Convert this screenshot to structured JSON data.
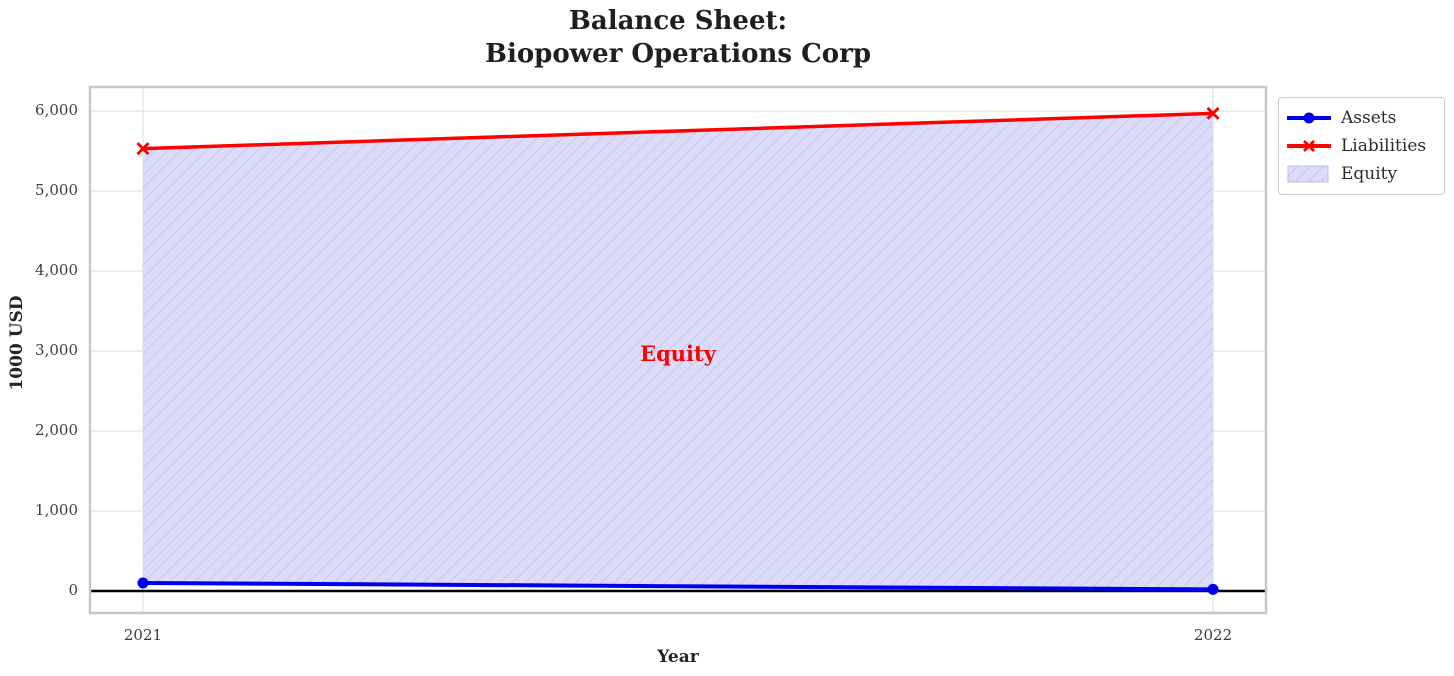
{
  "title": "Balance Sheet:\nBiopower Operations Corp",
  "chart_data": {
    "type": "area",
    "title": "Balance Sheet: Biopower Operations Corp",
    "xlabel": "Year",
    "ylabel": "1000 USD",
    "x": [
      2021,
      2022
    ],
    "xticks": [
      "2021",
      "2022"
    ],
    "yticks": [
      0,
      1000,
      2000,
      3000,
      4000,
      5000,
      6000
    ],
    "ytick_labels": [
      "0",
      "1,000",
      "2,000",
      "3,000",
      "4,000",
      "5,000",
      "6,000"
    ],
    "xlim": [
      2020.9505,
      2022.0495
    ],
    "ylim": [
      -275,
      6300
    ],
    "grid": true,
    "zero_line": true,
    "series": [
      {
        "name": "Assets",
        "values": [
          100,
          20
        ],
        "color": "#0000ee",
        "marker": "circle",
        "line_width": 4
      },
      {
        "name": "Liabilities",
        "values": [
          5530,
          5970
        ],
        "color": "#ff0000",
        "marker": "x",
        "line_width": 3.5
      }
    ],
    "fill_between": {
      "label": "Equity",
      "between": [
        "Assets",
        "Liabilities"
      ],
      "fill_color": "#dcdcf8",
      "hatch": "/",
      "hatch_color": "#bcbcee"
    },
    "annotation": {
      "text": "Equity",
      "color": "#ff0000",
      "x": 2021.5,
      "y": 2950
    },
    "legend": {
      "position": "outside-upper-right",
      "entries": [
        {
          "label": "Assets",
          "swatch": "line-circle",
          "color": "#0000ee"
        },
        {
          "label": "Liabilities",
          "swatch": "line-x",
          "color": "#ff0000"
        },
        {
          "label": "Equity",
          "swatch": "hatch-patch",
          "color": "#dcdcf8"
        }
      ]
    },
    "colors": {
      "grid": "#dcdcdc",
      "plot_border": "#c7c7c7",
      "zero_line": "#000000",
      "background": "#ffffff",
      "title_text": "#1f1f1f",
      "tick_text": "#3c3c3c"
    }
  }
}
